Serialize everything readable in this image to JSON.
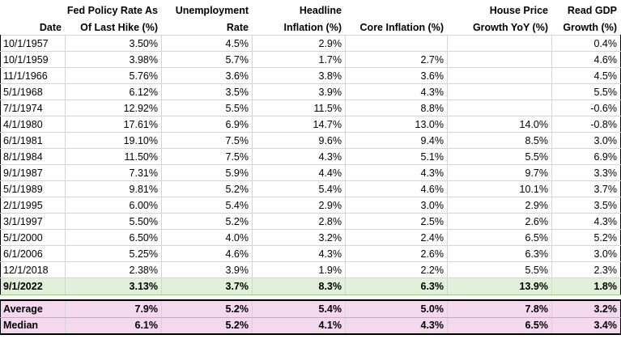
{
  "headers": [
    {
      "line1": "",
      "line2": "Date"
    },
    {
      "line1": "Fed Policy Rate As",
      "line2": "Of Last Hike (%)"
    },
    {
      "line1": "Unemployment",
      "line2": "Rate"
    },
    {
      "line1": "Headline",
      "line2": "Inflation (%)"
    },
    {
      "line1": "",
      "line2": "Core Inflation (%)"
    },
    {
      "line1": "House Price",
      "line2": "Growth YoY (%)"
    },
    {
      "line1": "Read GDP",
      "line2": "Growth (%)"
    }
  ],
  "rows": [
    [
      "10/1/1957",
      "3.50%",
      "4.5%",
      "2.9%",
      "",
      "",
      "0.4%"
    ],
    [
      "10/1/1959",
      "3.98%",
      "5.7%",
      "1.7%",
      "2.7%",
      "",
      "4.6%"
    ],
    [
      "11/1/1966",
      "5.76%",
      "3.6%",
      "3.8%",
      "3.6%",
      "",
      "4.5%"
    ],
    [
      "5/1/1968",
      "6.12%",
      "3.5%",
      "3.9%",
      "4.3%",
      "",
      "5.5%"
    ],
    [
      "7/1/1974",
      "12.92%",
      "5.5%",
      "11.5%",
      "8.8%",
      "",
      "-0.6%"
    ],
    [
      "4/1/1980",
      "17.61%",
      "6.9%",
      "14.7%",
      "13.0%",
      "14.0%",
      "-0.8%"
    ],
    [
      "6/1/1981",
      "19.10%",
      "7.5%",
      "9.6%",
      "9.4%",
      "8.5%",
      "3.0%"
    ],
    [
      "8/1/1984",
      "11.50%",
      "7.5%",
      "4.3%",
      "5.1%",
      "5.5%",
      "6.9%"
    ],
    [
      "9/1/1987",
      "7.31%",
      "5.9%",
      "4.4%",
      "4.3%",
      "9.7%",
      "3.3%"
    ],
    [
      "5/1/1989",
      "9.81%",
      "5.2%",
      "5.4%",
      "4.6%",
      "10.1%",
      "3.7%"
    ],
    [
      "2/1/1995",
      "6.00%",
      "5.4%",
      "2.9%",
      "3.0%",
      "2.9%",
      "3.5%"
    ],
    [
      "3/1/1997",
      "5.50%",
      "5.2%",
      "2.8%",
      "2.5%",
      "2.6%",
      "4.3%"
    ],
    [
      "5/1/2000",
      "6.50%",
      "4.0%",
      "3.2%",
      "2.4%",
      "6.5%",
      "5.2%"
    ],
    [
      "6/1/2006",
      "5.25%",
      "4.6%",
      "4.3%",
      "2.6%",
      "6.3%",
      "3.0%"
    ],
    [
      "12/1/2018",
      "2.38%",
      "3.9%",
      "1.9%",
      "2.2%",
      "5.5%",
      "2.3%"
    ]
  ],
  "highlight_row": [
    "9/1/2022",
    "3.13%",
    "3.7%",
    "8.3%",
    "6.3%",
    "13.9%",
    "1.8%"
  ],
  "summary_rows": [
    [
      "Average",
      "7.9%",
      "5.2%",
      "5.4%",
      "5.0%",
      "7.8%",
      "3.2%"
    ],
    [
      "Median",
      "6.1%",
      "5.2%",
      "4.1%",
      "4.3%",
      "6.5%",
      "3.4%"
    ]
  ],
  "colors": {
    "highlight_bg": "#e2efda",
    "summary_bg": "#f4d8ee",
    "gridline": "#d4d4d4"
  }
}
